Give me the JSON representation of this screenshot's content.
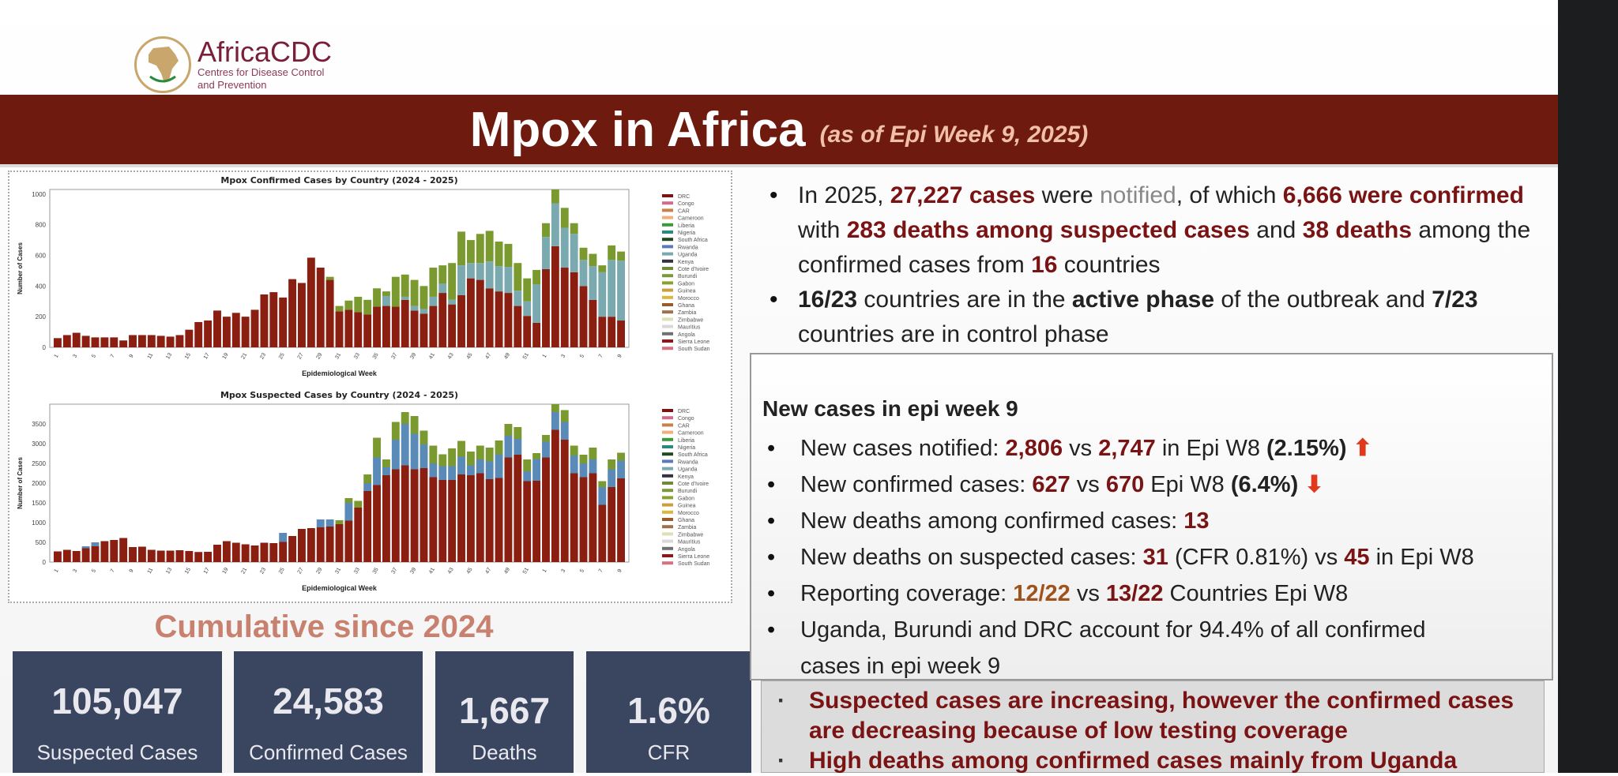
{
  "logo": {
    "brand": "AfricaCDC",
    "subtitle_line1": "Centres for Disease Control",
    "subtitle_line2": "and Prevention"
  },
  "banner": {
    "title": "Mpox in Africa",
    "subtitle": "(as of Epi Week 9, 2025)"
  },
  "summary": {
    "b1": [
      "In 2025, ",
      "27,227 cases",
      " were ",
      "notified",
      ", of which  ",
      "6,666 were confirmed",
      " with ",
      "283 deaths among suspected cases",
      " and ",
      "38 deaths",
      " among the confirmed cases from ",
      "16",
      " countries"
    ],
    "b2": [
      "16/23",
      " countries are in the ",
      "active phase",
      " of the outbreak and ",
      "7/23",
      " countries are in control phase"
    ]
  },
  "week_box": {
    "heading": "New cases in epi week 9",
    "i1": [
      "New cases notified: ",
      "2,806",
      " vs ",
      "2,747",
      "  in Epi W8 ",
      "(2.15%)",
      "⬆"
    ],
    "i2": [
      "New confirmed cases: ",
      "627",
      " vs ",
      "670",
      " Epi W8 ",
      "(6.4%)",
      "⬇"
    ],
    "i3": [
      "New deaths among confirmed cases: ",
      "13"
    ],
    "i4": [
      "New deaths on suspected cases: ",
      "31",
      " (CFR 0.81%) vs ",
      "45",
      " in Epi W8"
    ],
    "i5": [
      "Reporting coverage: ",
      "12/22",
      " vs  ",
      "13/22",
      " Countries Epi W8"
    ],
    "i6": "Uganda, Burundi and DRC account for 94.4% of all confirmed cases in epi week 9"
  },
  "conclusions": [
    "Suspected cases are increasing, however the confirmed cases are decreasing because of low testing coverage",
    "High deaths among confirmed cases mainly from Uganda"
  ],
  "cumulative": {
    "title": "Cumulative  since 2024",
    "cards": [
      {
        "value": "105,047",
        "label": "Suspected Cases"
      },
      {
        "value": "24,583",
        "label": "Confirmed Cases"
      },
      {
        "value": "1,667",
        "label": "Deaths"
      },
      {
        "value": "1.6%",
        "label": "CFR"
      }
    ]
  },
  "colors": {
    "banner": "#6e1a0e",
    "accent": "#7a1414",
    "card": "#3a4660"
  },
  "chart_data": [
    {
      "type": "bar",
      "stacked": true,
      "title": "Mpox Confirmed Cases by Country (2024 - 2025)",
      "xlabel": "Epidemiological Week",
      "ylabel": "Number of Cases",
      "ylim": [
        0,
        1030
      ],
      "yticks": [
        0,
        200,
        400,
        600,
        800,
        1000
      ],
      "categories": [
        "1",
        "2",
        "3",
        "4",
        "5",
        "6",
        "7",
        "8",
        "9",
        "10",
        "11",
        "12",
        "13",
        "14",
        "15",
        "16",
        "17",
        "18",
        "19",
        "20",
        "21",
        "22",
        "23",
        "24",
        "25",
        "26",
        "27",
        "28",
        "29",
        "30",
        "31",
        "32",
        "33",
        "34",
        "35",
        "36",
        "37",
        "38",
        "39",
        "40",
        "41",
        "42",
        "43",
        "44",
        "45",
        "46",
        "47",
        "48",
        "49",
        "50",
        "51",
        "52",
        "1",
        "2",
        "3",
        "4",
        "5",
        "6",
        "7",
        "8",
        "9"
      ],
      "legend": [
        "DRC",
        "Congo",
        "CAR",
        "Cameroon",
        "Liberia",
        "Nigeria",
        "South Africa",
        "Rwanda",
        "Uganda",
        "Kenya",
        "Cote d'Ivoire",
        "Burundi",
        "Gabon",
        "Guinea",
        "Morocco",
        "Ghana",
        "Zambia",
        "Zimbabwe",
        "Mauritius",
        "Angola",
        "Sierra Leone",
        "South Sudan"
      ],
      "legend_colors": [
        "#7a1414",
        "#d66a8c",
        "#c8814a",
        "#f0b07a",
        "#3a9a3a",
        "#2a8a80",
        "#1f4a1f",
        "#5a7ab8",
        "#7aaab0",
        "#333340",
        "#6e8a3a",
        "#7a9a38",
        "#8aa030",
        "#c8a040",
        "#d8b840",
        "#9a5a2a",
        "#a0704a",
        "#e0e0b8",
        "#d8d8d8",
        "#707070",
        "#8a1a1a",
        "#d87080"
      ],
      "series": [
        {
          "name": "DRC",
          "color": "#8a1e10",
          "values": [
            60,
            80,
            95,
            75,
            65,
            65,
            65,
            45,
            80,
            80,
            80,
            75,
            70,
            80,
            115,
            165,
            175,
            240,
            200,
            225,
            200,
            245,
            345,
            360,
            325,
            445,
            420,
            585,
            520,
            440,
            235,
            245,
            230,
            215,
            265,
            270,
            265,
            310,
            240,
            220,
            270,
            355,
            280,
            340,
            450,
            440,
            385,
            365,
            355,
            270,
            205,
            160,
            510,
            660,
            520,
            490,
            400,
            310,
            200,
            200,
            175
          ]
        },
        {
          "name": "Uganda",
          "color": "#7aaab0",
          "values": [
            0,
            0,
            0,
            0,
            0,
            0,
            0,
            0,
            0,
            0,
            0,
            0,
            0,
            0,
            0,
            0,
            0,
            0,
            0,
            0,
            0,
            0,
            0,
            0,
            0,
            0,
            0,
            0,
            0,
            0,
            0,
            0,
            0,
            0,
            0,
            65,
            0,
            20,
            30,
            30,
            60,
            60,
            30,
            195,
            100,
            110,
            175,
            165,
            170,
            100,
            95,
            250,
            210,
            280,
            260,
            250,
            170,
            220,
            290,
            370,
            390
          ]
        },
        {
          "name": "Burundi",
          "color": "#7a9a30",
          "values": [
            0,
            0,
            0,
            0,
            0,
            0,
            0,
            0,
            0,
            0,
            0,
            0,
            0,
            0,
            0,
            0,
            0,
            0,
            0,
            0,
            0,
            0,
            0,
            0,
            0,
            0,
            0,
            0,
            0,
            20,
            35,
            60,
            100,
            95,
            120,
            30,
            195,
            145,
            170,
            150,
            190,
            120,
            240,
            220,
            150,
            190,
            200,
            160,
            150,
            180,
            150,
            95,
            90,
            90,
            130,
            70,
            80,
            80,
            45,
            95,
            60
          ]
        }
      ]
    },
    {
      "type": "bar",
      "stacked": true,
      "title": "Mpox Suspected Cases by Country (2024 - 2025)",
      "xlabel": "Epidemiological Week",
      "ylabel": "Number of Cases",
      "ylim": [
        0,
        4000
      ],
      "yticks": [
        0,
        500,
        1000,
        1500,
        2000,
        2500,
        3000,
        3500
      ],
      "categories": [
        "1",
        "2",
        "3",
        "4",
        "5",
        "6",
        "7",
        "8",
        "9",
        "10",
        "11",
        "12",
        "13",
        "14",
        "15",
        "16",
        "17",
        "18",
        "19",
        "20",
        "21",
        "22",
        "23",
        "24",
        "25",
        "26",
        "27",
        "28",
        "29",
        "30",
        "31",
        "32",
        "33",
        "34",
        "35",
        "36",
        "37",
        "38",
        "39",
        "40",
        "41",
        "42",
        "43",
        "44",
        "45",
        "46",
        "47",
        "48",
        "49",
        "50",
        "51",
        "52",
        "1",
        "2",
        "3",
        "4",
        "5",
        "6",
        "7",
        "8",
        "9"
      ],
      "legend": [
        "DRC",
        "Congo",
        "CAR",
        "Cameroon",
        "Liberia",
        "Nigeria",
        "South Africa",
        "Rwanda",
        "Uganda",
        "Kenya",
        "Cote d'Ivoire",
        "Burundi",
        "Gabon",
        "Guinea",
        "Morocco",
        "Ghana",
        "Zambia",
        "Zimbabwe",
        "Mauritius",
        "Angola",
        "Sierra Leone",
        "South Sudan"
      ],
      "series": [
        {
          "name": "DRC",
          "color": "#8a1e10",
          "values": [
            270,
            310,
            280,
            350,
            400,
            530,
            560,
            610,
            380,
            390,
            310,
            290,
            290,
            300,
            280,
            255,
            260,
            440,
            530,
            490,
            450,
            420,
            490,
            480,
            510,
            660,
            840,
            860,
            880,
            900,
            960,
            1050,
            1380,
            1800,
            1950,
            2200,
            2350,
            2450,
            2350,
            2380,
            2150,
            2080,
            2080,
            2220,
            2200,
            2250,
            2100,
            2130,
            2650,
            2720,
            2050,
            2060,
            2650,
            3350,
            3100,
            2250,
            2150,
            2250,
            1450,
            1900,
            2120
          ]
        },
        {
          "name": "Uganda",
          "color": "#5a8ab8",
          "values": [
            0,
            0,
            0,
            50,
            100,
            0,
            0,
            0,
            0,
            0,
            0,
            0,
            0,
            0,
            0,
            0,
            0,
            0,
            0,
            0,
            0,
            0,
            0,
            0,
            230,
            0,
            0,
            0,
            200,
            180,
            0,
            450,
            0,
            200,
            700,
            200,
            750,
            1050,
            900,
            600,
            350,
            350,
            350,
            450,
            250,
            350,
            450,
            600,
            550,
            400,
            250,
            550,
            400,
            450,
            450,
            450,
            350,
            350,
            450,
            450,
            450
          ]
        },
        {
          "name": "Burundi",
          "color": "#7a9a30",
          "values": [
            0,
            0,
            0,
            0,
            0,
            0,
            0,
            0,
            0,
            0,
            0,
            0,
            0,
            0,
            0,
            0,
            0,
            0,
            0,
            0,
            0,
            0,
            0,
            0,
            0,
            0,
            0,
            0,
            0,
            0,
            100,
            120,
            170,
            220,
            500,
            200,
            450,
            300,
            450,
            350,
            450,
            300,
            450,
            400,
            350,
            350,
            350,
            350,
            300,
            300,
            300,
            150,
            170,
            200,
            300,
            250,
            220,
            300,
            150,
            250,
            200
          ]
        }
      ]
    }
  ]
}
